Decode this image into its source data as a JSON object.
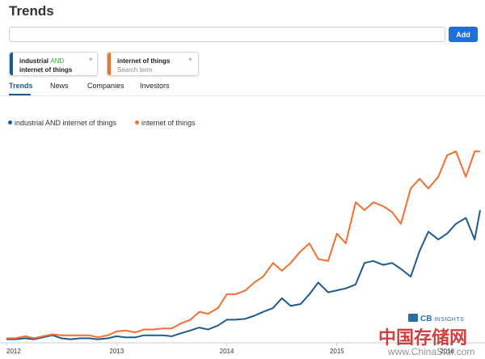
{
  "header": {
    "title": "Trends"
  },
  "search": {
    "value": "",
    "placeholder": "",
    "add_label": "Add"
  },
  "terms": [
    {
      "line1_a": "industrial ",
      "operator": "AND",
      "line2": "internet of things",
      "close": "×",
      "color": "#1f5b8a"
    },
    {
      "line1_a": "internet of things",
      "line2": "Search term",
      "close": "×",
      "color": "#f07030"
    }
  ],
  "tabs": [
    {
      "label": "Trends",
      "active": true
    },
    {
      "label": "News",
      "active": false
    },
    {
      "label": "Companies",
      "active": false
    },
    {
      "label": "Investors",
      "active": false
    }
  ],
  "colors": {
    "series1": "#1f5b8a",
    "series2": "#f07030",
    "accent": "#1f6fd9",
    "operator": "#3cab3c"
  },
  "chart_data": {
    "type": "line",
    "title": "",
    "xlabel": "",
    "ylabel": "",
    "x_ticks": [
      "2012",
      "2013",
      "2014",
      "2015",
      "2016"
    ],
    "x_domain": [
      2012.0,
      2016.3
    ],
    "ylim": [
      0,
      100
    ],
    "grid": false,
    "legend_position": "top-left",
    "series": [
      {
        "name": "industrial AND internet of things",
        "color": "#1f5b8a",
        "points": [
          [
            2012.0,
            1
          ],
          [
            2012.08,
            1
          ],
          [
            2012.17,
            1.5
          ],
          [
            2012.25,
            1
          ],
          [
            2012.33,
            2
          ],
          [
            2012.42,
            3
          ],
          [
            2012.5,
            1.5
          ],
          [
            2012.58,
            1
          ],
          [
            2012.67,
            1.5
          ],
          [
            2012.75,
            1.5
          ],
          [
            2012.83,
            1
          ],
          [
            2012.92,
            1.5
          ],
          [
            2013.0,
            2.5
          ],
          [
            2013.08,
            2
          ],
          [
            2013.17,
            2
          ],
          [
            2013.25,
            3
          ],
          [
            2013.33,
            3
          ],
          [
            2013.42,
            3
          ],
          [
            2013.5,
            2.5
          ],
          [
            2013.58,
            4
          ],
          [
            2013.67,
            5.5
          ],
          [
            2013.75,
            7
          ],
          [
            2013.83,
            6
          ],
          [
            2013.92,
            8
          ],
          [
            2014.0,
            11
          ],
          [
            2014.08,
            11
          ],
          [
            2014.17,
            11.5
          ],
          [
            2014.25,
            13
          ],
          [
            2014.33,
            15
          ],
          [
            2014.42,
            17
          ],
          [
            2014.5,
            22
          ],
          [
            2014.58,
            18
          ],
          [
            2014.67,
            19
          ],
          [
            2014.75,
            24
          ],
          [
            2014.83,
            30
          ],
          [
            2014.92,
            25
          ],
          [
            2015.0,
            26
          ],
          [
            2015.08,
            27
          ],
          [
            2015.17,
            29
          ],
          [
            2015.25,
            40
          ],
          [
            2015.33,
            41
          ],
          [
            2015.42,
            39
          ],
          [
            2015.5,
            40
          ],
          [
            2015.58,
            37
          ],
          [
            2015.67,
            33
          ],
          [
            2015.75,
            46
          ],
          [
            2015.83,
            56
          ],
          [
            2015.92,
            52
          ],
          [
            2016.0,
            55
          ],
          [
            2016.08,
            60
          ],
          [
            2016.17,
            63
          ],
          [
            2016.25,
            52
          ],
          [
            2016.3,
            67
          ]
        ]
      },
      {
        "name": "internet of things",
        "color": "#f07030",
        "points": [
          [
            2012.0,
            1.5
          ],
          [
            2012.08,
            1.5
          ],
          [
            2012.17,
            2.5
          ],
          [
            2012.25,
            1.5
          ],
          [
            2012.33,
            2.5
          ],
          [
            2012.42,
            3.5
          ],
          [
            2012.5,
            3
          ],
          [
            2012.58,
            3
          ],
          [
            2012.67,
            3
          ],
          [
            2012.75,
            3
          ],
          [
            2012.83,
            2
          ],
          [
            2012.92,
            3
          ],
          [
            2013.0,
            5
          ],
          [
            2013.08,
            5.5
          ],
          [
            2013.17,
            4.5
          ],
          [
            2013.25,
            6
          ],
          [
            2013.33,
            6
          ],
          [
            2013.42,
            6.5
          ],
          [
            2013.5,
            6.5
          ],
          [
            2013.58,
            9
          ],
          [
            2013.67,
            11
          ],
          [
            2013.75,
            15
          ],
          [
            2013.83,
            14
          ],
          [
            2013.92,
            17
          ],
          [
            2014.0,
            24
          ],
          [
            2014.08,
            24
          ],
          [
            2014.17,
            26
          ],
          [
            2014.25,
            30
          ],
          [
            2014.33,
            33
          ],
          [
            2014.42,
            40
          ],
          [
            2014.5,
            36
          ],
          [
            2014.58,
            40
          ],
          [
            2014.67,
            46
          ],
          [
            2014.75,
            50
          ],
          [
            2014.83,
            42
          ],
          [
            2014.92,
            41
          ],
          [
            2015.0,
            55
          ],
          [
            2015.08,
            50
          ],
          [
            2015.17,
            71
          ],
          [
            2015.25,
            67
          ],
          [
            2015.33,
            71
          ],
          [
            2015.42,
            69
          ],
          [
            2015.5,
            66
          ],
          [
            2015.58,
            60
          ],
          [
            2015.67,
            78
          ],
          [
            2015.75,
            83
          ],
          [
            2015.83,
            78
          ],
          [
            2015.92,
            84
          ],
          [
            2016.0,
            95
          ],
          [
            2016.08,
            97
          ],
          [
            2016.17,
            84
          ],
          [
            2016.25,
            97
          ],
          [
            2016.3,
            97
          ]
        ]
      }
    ]
  },
  "watermark": {
    "brand_strong": "CB",
    "brand_light": "INSIGHTS",
    "site": "中国存储网",
    "url": "www.ChinaStor.com"
  }
}
